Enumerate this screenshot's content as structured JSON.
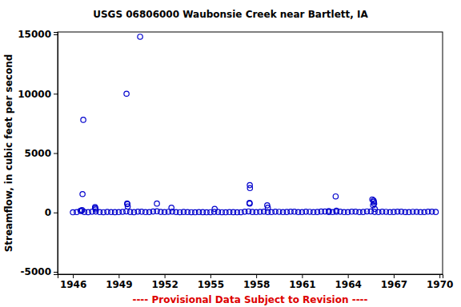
{
  "chart_data": {
    "type": "scatter",
    "title": "USGS 06806000 Waubonsie Creek near Bartlett, IA",
    "y_label": "Streamflow, in cubic feet per second",
    "annotation": "---- Provisional Data Subject to Revision ----",
    "color": "#0000cc",
    "marker": "open-circle",
    "grid": false,
    "xlim": [
      1945.0,
      1970.2
    ],
    "xticks": [
      1946,
      1949,
      1952,
      1955,
      1958,
      1961,
      1964,
      1967,
      1970
    ],
    "ylim": [
      -5200,
      15200
    ],
    "yticks": [
      -5000,
      0,
      5000,
      10000,
      15000
    ],
    "x": [
      1946,
      1946.25,
      1946.5,
      1946.75,
      1947,
      1947.25,
      1947.5,
      1947.75,
      1948,
      1948.25,
      1948.5,
      1948.75,
      1949,
      1949.25,
      1949.5,
      1949.75,
      1950,
      1950.25,
      1950.5,
      1950.75,
      1951,
      1951.25,
      1951.5,
      1951.75,
      1952,
      1952.25,
      1952.5,
      1952.75,
      1953,
      1953.25,
      1953.5,
      1953.75,
      1954,
      1954.25,
      1954.5,
      1954.75,
      1955,
      1955.25,
      1955.5,
      1955.75,
      1956,
      1956.25,
      1956.5,
      1956.75,
      1957,
      1957.25,
      1957.5,
      1957.75,
      1958,
      1958.25,
      1958.5,
      1958.75,
      1959,
      1959.25,
      1959.5,
      1959.75,
      1960,
      1960.25,
      1960.5,
      1960.75,
      1961,
      1961.25,
      1961.5,
      1961.75,
      1962,
      1962.25,
      1962.5,
      1962.75,
      1963,
      1963.25,
      1963.5,
      1963.75,
      1964,
      1964.25,
      1964.5,
      1964.75,
      1965,
      1965.25,
      1965.5,
      1965.75,
      1966,
      1966.25,
      1966.5,
      1966.75,
      1967,
      1967.25,
      1967.5,
      1967.75,
      1968,
      1968.25,
      1968.5,
      1968.75,
      1969,
      1969.25,
      1969.5,
      1969.75,
      1946.55,
      1946.6,
      1946.63,
      1946.68,
      1947.45,
      1947.47,
      1947.49,
      1949.51,
      1949.55,
      1949.57,
      1949.59,
      1950.4,
      1951.5,
      1952.45,
      1955.28,
      1957.58,
      1957.59,
      1957.56,
      1957.57,
      1958.72,
      1958.76,
      1962.75,
      1963.25,
      1963.2,
      1965.6,
      1965.68,
      1965.7,
      1965.72,
      1965.65,
      1965.76
    ],
    "values": [
      15,
      30,
      150,
      40,
      25,
      60,
      80,
      30,
      20,
      45,
      35,
      25,
      30,
      50,
      90,
      40,
      25,
      70,
      60,
      30,
      35,
      80,
      100,
      45,
      30,
      55,
      70,
      35,
      20,
      40,
      30,
      20,
      15,
      35,
      25,
      15,
      20,
      45,
      40,
      20,
      15,
      30,
      25,
      15,
      20,
      60,
      90,
      40,
      30,
      50,
      70,
      35,
      35,
      60,
      55,
      30,
      40,
      70,
      65,
      35,
      35,
      60,
      55,
      30,
      40,
      75,
      80,
      40,
      35,
      55,
      60,
      30,
      30,
      65,
      70,
      35,
      40,
      90,
      85,
      45,
      35,
      60,
      55,
      30,
      40,
      70,
      60,
      35,
      30,
      55,
      50,
      30,
      35,
      65,
      60,
      40,
      120,
      200,
      1550,
      7800,
      450,
      350,
      250,
      10000,
      750,
      700,
      500,
      14800,
      750,
      400,
      300,
      2300,
      2050,
      800,
      750,
      600,
      400,
      120,
      150,
      1350,
      1100,
      1000,
      900,
      750,
      600,
      300
    ]
  }
}
